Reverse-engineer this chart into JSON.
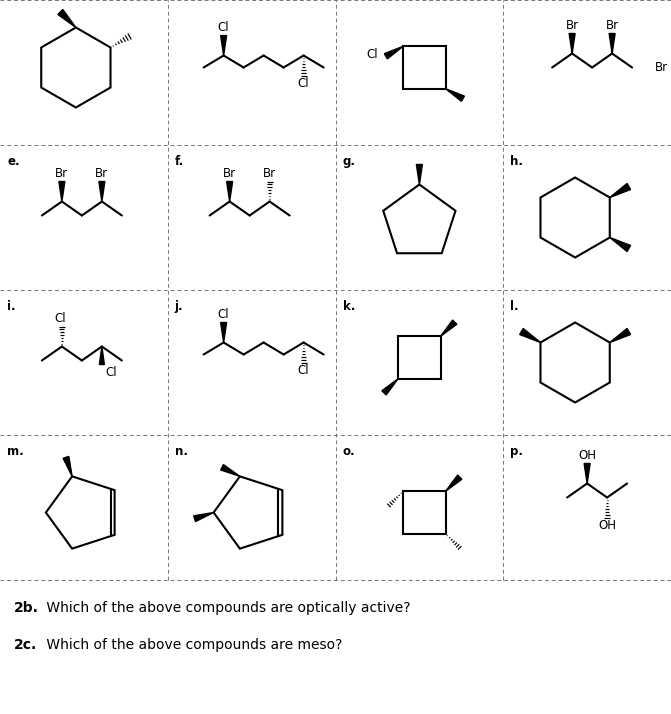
{
  "bg_color": "#ffffff",
  "grid_color": "#777777",
  "labels": [
    "",
    "",
    "",
    "",
    "e.",
    "f.",
    "g.",
    "h.",
    "i.",
    "j.",
    "k.",
    "l.",
    "m.",
    "n.",
    "o.",
    "p."
  ],
  "q1_bold": "2b.",
  "q1_rest": " Which of the above compounds are optically active?",
  "q2_bold": "2c.",
  "q2_rest": " Which of the above compounds are meso?",
  "fig_w": 6.71,
  "fig_h": 7.14,
  "dpi": 100
}
